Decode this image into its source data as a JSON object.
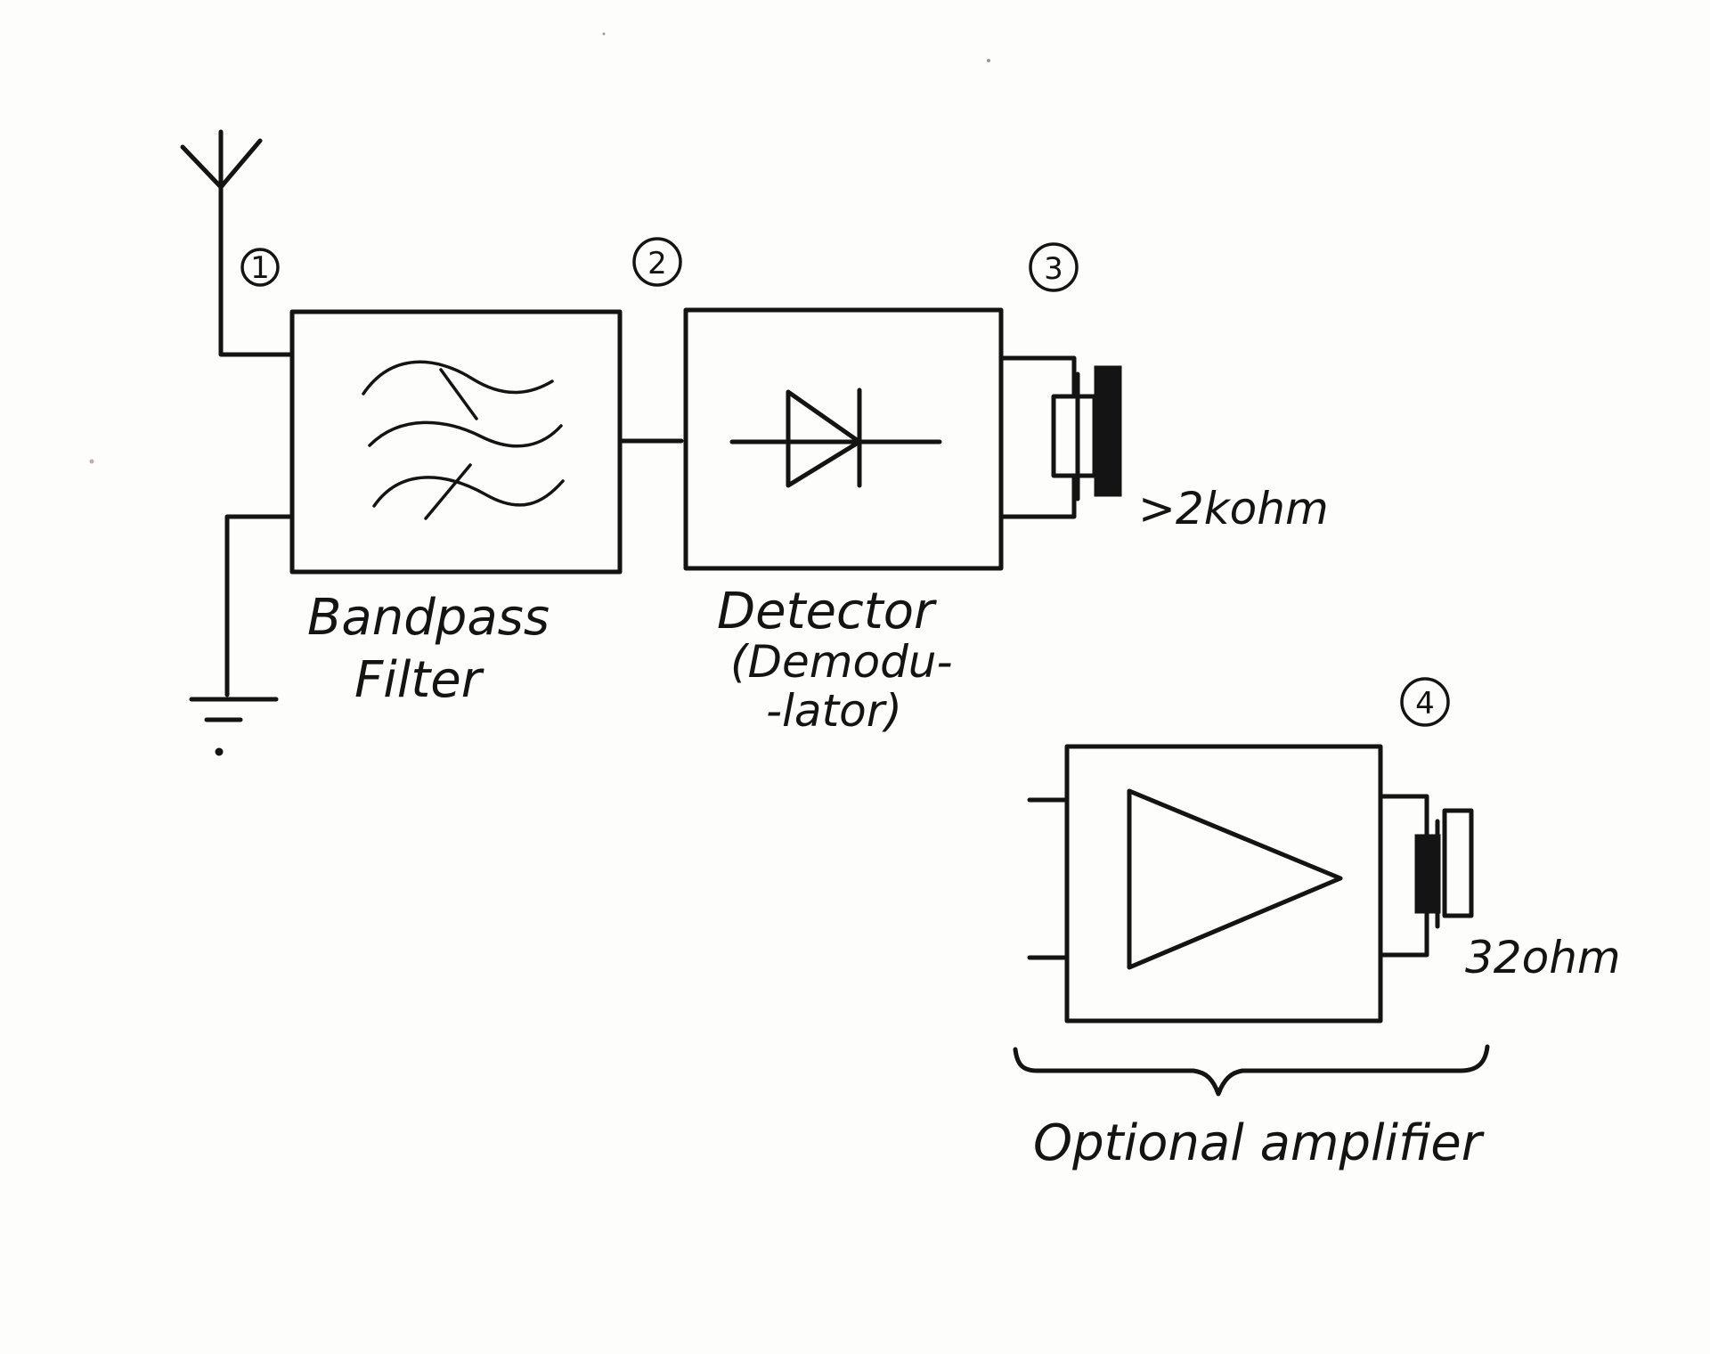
{
  "nodes": {
    "bandpass_filter": {
      "label_line1": "Bandpass",
      "label_line2": "Filter"
    },
    "detector": {
      "label_line1": "Detector",
      "label_line2": "(Demodu-",
      "label_line3": "-lator)"
    },
    "amplifier": {
      "bracket_label": "Optional amplifier"
    }
  },
  "annotations": {
    "point_1": "1",
    "point_2": "2",
    "point_3": "3",
    "point_4": "4",
    "headphone_high": ">2kohm",
    "headphone_low": "32ohm"
  },
  "colors": {
    "ink": "#141414",
    "paper": "#fdfdfb"
  }
}
